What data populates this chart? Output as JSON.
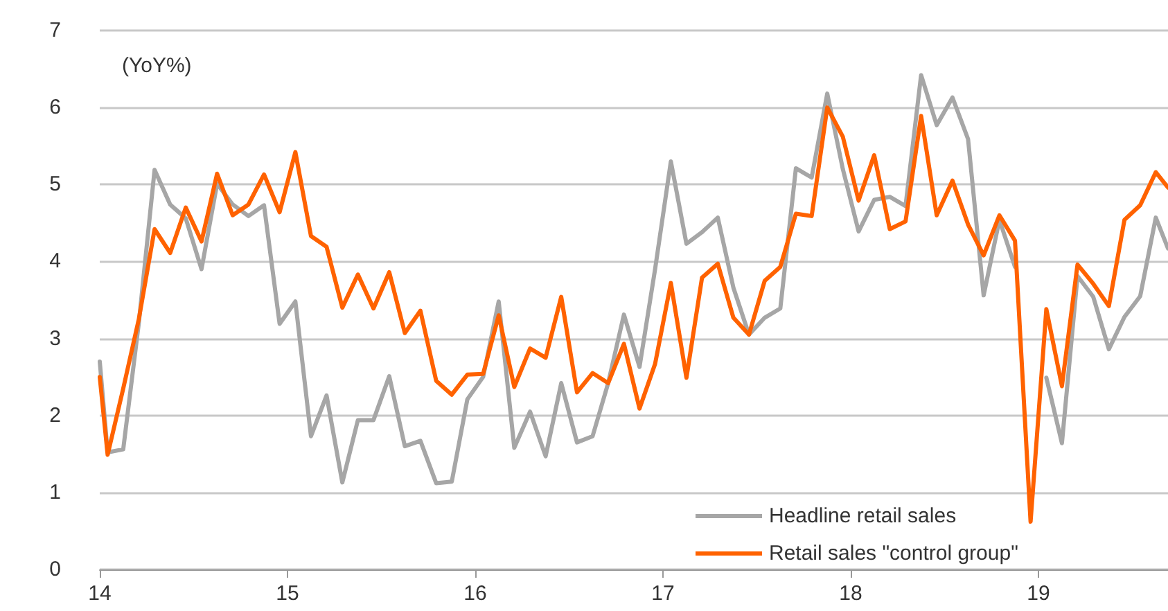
{
  "chart_data": {
    "type": "line",
    "annotations": [
      "(YoY%)"
    ],
    "x": [
      14,
      14.042,
      14.125,
      14.208,
      14.292,
      14.375,
      14.458,
      14.542,
      14.625,
      14.708,
      14.792,
      14.875,
      14.958,
      15.042,
      15.125,
      15.208,
      15.292,
      15.375,
      15.458,
      15.542,
      15.625,
      15.708,
      15.792,
      15.875,
      15.958,
      16.042,
      16.125,
      16.208,
      16.292,
      16.375,
      16.458,
      16.542,
      16.625,
      16.708,
      16.792,
      16.875,
      16.958,
      17.042,
      17.125,
      17.208,
      17.292,
      17.375,
      17.458,
      17.542,
      17.625,
      17.708,
      17.792,
      17.875,
      17.958,
      18.042,
      18.125,
      18.208,
      18.292,
      18.375,
      18.458,
      18.542,
      18.625,
      18.708,
      18.792,
      18.875,
      18.958,
      19.042,
      19.125,
      19.208,
      19.292,
      19.375,
      19.458,
      19.542,
      19.625,
      19.69
    ],
    "series": [
      {
        "name": "Headline retail sales",
        "color": "#a6a6a6",
        "values": [
          2.7,
          1.52,
          1.56,
          3.2,
          5.19,
          4.74,
          4.56,
          3.9,
          5.01,
          4.74,
          4.59,
          4.73,
          3.19,
          3.48,
          1.73,
          2.26,
          1.13,
          1.94,
          1.94,
          2.51,
          1.6,
          1.67,
          1.12,
          1.14,
          2.21,
          2.5,
          3.48,
          1.58,
          2.05,
          1.47,
          2.42,
          1.65,
          1.73,
          2.42,
          3.31,
          2.63,
          3.9,
          5.3,
          4.23,
          4.38,
          4.57,
          3.66,
          3.05,
          3.27,
          3.39,
          5.21,
          5.09,
          6.18,
          5.2,
          4.39,
          4.8,
          4.84,
          4.72,
          6.42,
          5.77,
          6.13,
          5.59,
          3.56,
          4.54,
          3.93,
          null,
          2.49,
          1.64,
          3.81,
          3.54,
          2.86,
          3.28,
          3.55,
          4.57,
          4.17
        ]
      },
      {
        "name": "Retail sales \"control group\"",
        "color": "#ff6200",
        "values": [
          2.5,
          1.49,
          2.35,
          3.25,
          4.42,
          4.11,
          4.7,
          4.26,
          5.14,
          4.6,
          4.74,
          5.13,
          4.64,
          5.42,
          4.33,
          4.19,
          3.4,
          3.83,
          3.39,
          3.86,
          3.07,
          3.36,
          2.45,
          2.27,
          2.53,
          2.54,
          3.3,
          2.37,
          2.87,
          2.75,
          3.54,
          2.3,
          2.55,
          2.42,
          2.93,
          2.09,
          2.67,
          3.72,
          2.49,
          3.79,
          3.97,
          3.27,
          3.05,
          3.75,
          3.93,
          4.62,
          4.59,
          6.0,
          5.62,
          4.79,
          5.38,
          4.42,
          4.52,
          5.89,
          4.6,
          5.05,
          4.48,
          4.08,
          4.6,
          4.27,
          0.62,
          3.38,
          2.38,
          3.96,
          3.71,
          3.42,
          4.54,
          4.73,
          5.16,
          4.96
        ]
      }
    ],
    "xlim": [
      14,
      19.69
    ],
    "xticks": [
      14,
      15,
      16,
      17,
      18,
      19
    ],
    "ylim": [
      0,
      7
    ],
    "yticks": [
      0,
      1,
      2,
      3,
      4,
      5,
      6,
      7
    ],
    "grid": "y",
    "legend": "bottom right",
    "marker": "none",
    "line_style": "solid"
  }
}
